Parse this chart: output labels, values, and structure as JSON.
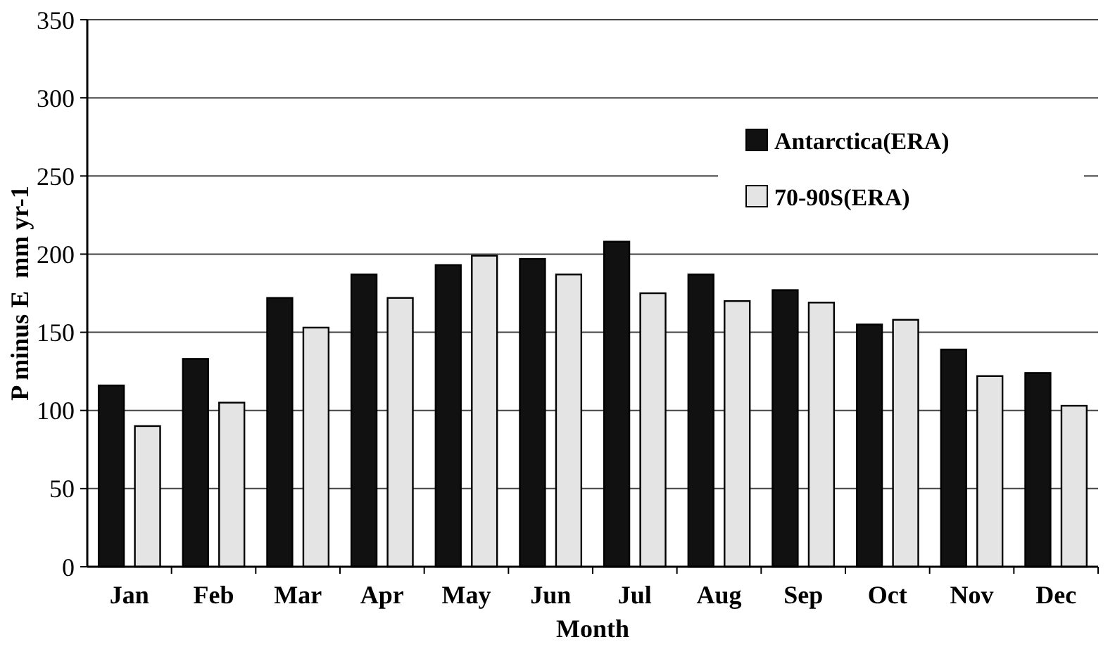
{
  "chart_data": {
    "type": "bar",
    "xlabel": "Month",
    "ylabel": "P minus E  mm yr-1",
    "categories": [
      "Jan",
      "Feb",
      "Mar",
      "Apr",
      "May",
      "Jun",
      "Jul",
      "Aug",
      "Sep",
      "Oct",
      "Nov",
      "Dec"
    ],
    "series": [
      {
        "name": "Antarctica(ERA)",
        "color": "#111111",
        "values": [
          116,
          133,
          172,
          187,
          193,
          197,
          208,
          187,
          177,
          155,
          139,
          124
        ]
      },
      {
        "name": "70-90S(ERA)",
        "color": "#e4e4e4",
        "values": [
          90,
          105,
          153,
          172,
          199,
          187,
          175,
          170,
          169,
          158,
          122,
          103
        ]
      }
    ],
    "ylim": [
      0,
      350
    ],
    "yticks": [
      0,
      50,
      100,
      150,
      200,
      250,
      300,
      350
    ],
    "grid": "y",
    "legend": "top right"
  }
}
